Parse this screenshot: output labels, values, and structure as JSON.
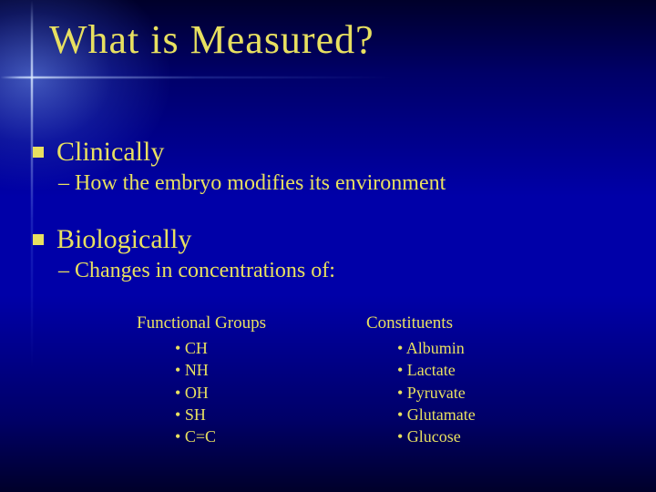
{
  "colors": {
    "text": "#e8e060",
    "bg_top": "#00002a",
    "bg_mid": "#0000a8",
    "flare": "#c8dcff"
  },
  "typography": {
    "title_fontsize": 44,
    "section_fontsize": 30,
    "sub_fontsize": 24,
    "column_head_fontsize": 19,
    "item_fontsize": 18,
    "font_family": "Papyrus"
  },
  "title": "What is Measured?",
  "sections": [
    {
      "heading": "Clinically",
      "sub": "– How the embryo modifies its environment"
    },
    {
      "heading": "Biologically",
      "sub": "– Changes in concentrations of:"
    }
  ],
  "columns": [
    {
      "heading": "Functional Groups",
      "items": [
        "CH",
        "NH",
        "OH",
        "SH",
        "C=C"
      ]
    },
    {
      "heading": "Constituents",
      "items": [
        "Albumin",
        "Lactate",
        "Pyruvate",
        "Glutamate",
        "Glucose"
      ]
    }
  ]
}
